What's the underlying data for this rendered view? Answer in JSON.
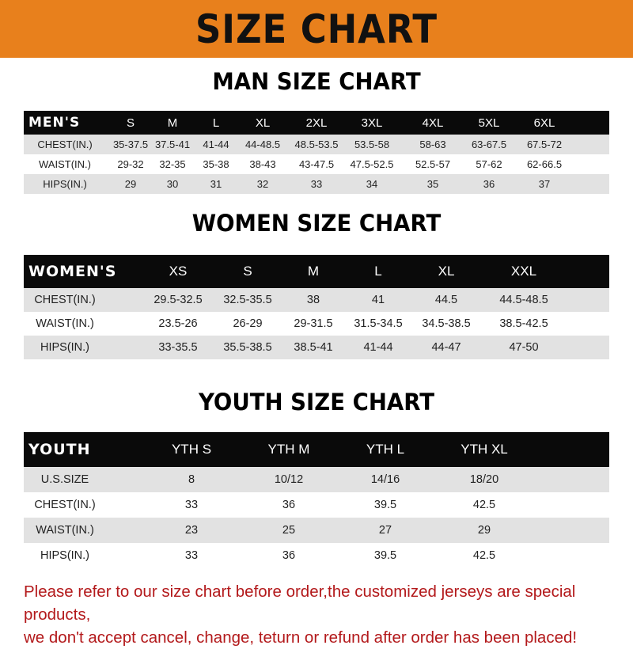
{
  "banner": {
    "title": "SIZE CHART",
    "color": "#e8801c"
  },
  "men": {
    "title": "MAN SIZE CHART",
    "header": [
      "MEN'S",
      "S",
      "M",
      "L",
      "XL",
      "2XL",
      "3XL",
      "4XL",
      "5XL",
      "6XL"
    ],
    "rows": [
      [
        "CHEST(IN.)",
        "35-37.5",
        "37.5-41",
        "41-44",
        "44-48.5",
        "48.5-53.5",
        "53.5-58",
        "58-63",
        "63-67.5",
        "67.5-72"
      ],
      [
        "WAIST(IN.)",
        "29-32",
        "32-35",
        "35-38",
        "38-43",
        "43-47.5",
        "47.5-52.5",
        "52.5-57",
        "57-62",
        "62-66.5"
      ],
      [
        "HIPS(IN.)",
        "29",
        "30",
        "31",
        "32",
        "33",
        "34",
        "35",
        "36",
        "37"
      ]
    ]
  },
  "women": {
    "title": "WOMEN SIZE CHART",
    "header": [
      "WOMEN'S",
      "XS",
      "S",
      "M",
      "L",
      "XL",
      "XXL"
    ],
    "rows": [
      [
        "CHEST(IN.)",
        "29.5-32.5",
        "32.5-35.5",
        "38",
        "41",
        "44.5",
        "44.5-48.5"
      ],
      [
        "WAIST(IN.)",
        "23.5-26",
        "26-29",
        "29-31.5",
        "31.5-34.5",
        "34.5-38.5",
        "38.5-42.5"
      ],
      [
        "HIPS(IN.)",
        "33-35.5",
        "35.5-38.5",
        "38.5-41",
        "41-44",
        "44-47",
        "47-50"
      ]
    ]
  },
  "youth": {
    "title": "YOUTH SIZE CHART",
    "header": [
      "YOUTH",
      "YTH S",
      "YTH M",
      "YTH L",
      "YTH XL"
    ],
    "rows": [
      [
        "U.S.SIZE",
        "8",
        "10/12",
        "14/16",
        "18/20"
      ],
      [
        "CHEST(IN.)",
        "33",
        "36",
        "39.5",
        "42.5"
      ],
      [
        "WAIST(IN.)",
        "23",
        "25",
        "27",
        "29"
      ],
      [
        "HIPS(IN.)",
        "33",
        "36",
        "39.5",
        "42.5"
      ]
    ]
  },
  "footer": {
    "line1": "Please refer to our size chart before order,the customized jerseys are special products,",
    "line2": "we don't accept cancel, change, teturn or refund after order has been placed!",
    "color": "#b3191b"
  }
}
